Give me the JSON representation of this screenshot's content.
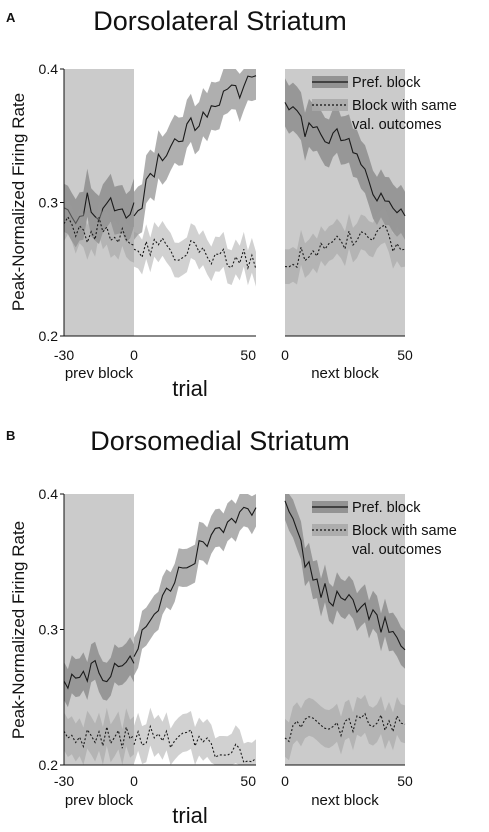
{
  "chart_data": [
    {
      "type": "line",
      "panel": "A",
      "title": "Dorsolateral Striatum",
      "ylabel": "Peak-Normalized Firing Rate",
      "xlabel": "trial",
      "ylim": [
        0.2,
        0.4
      ],
      "yticks": [
        "0.2",
        "0.3",
        "0.4"
      ],
      "segments": [
        {
          "label": "prev block",
          "x": [
            -30,
            -25,
            -20,
            -15,
            -10,
            -5,
            0
          ],
          "xlim": [
            -30,
            0
          ],
          "xticks": [
            "-30",
            "0"
          ],
          "shaded": true
        },
        {
          "label": "",
          "x": [
            0,
            5,
            10,
            15,
            20,
            25,
            30,
            35,
            40,
            45,
            50
          ],
          "xlim": [
            0,
            50
          ],
          "xticks": [
            "50"
          ],
          "shaded": false
        },
        {
          "label": "next block",
          "x": [
            0,
            5,
            10,
            15,
            20,
            25,
            30,
            35,
            40,
            45,
            50
          ],
          "xlim": [
            0,
            50
          ],
          "xticks": [
            "0",
            "50"
          ],
          "shaded": true
        }
      ],
      "series": [
        {
          "name": "Pref. block",
          "style": "solid",
          "band": 0.018,
          "values": [
            [
              0.296,
              0.292,
              0.3,
              0.29,
              0.296,
              0.292,
              0.3
            ],
            [
              0.29,
              0.31,
              0.33,
              0.338,
              0.35,
              0.36,
              0.37,
              0.38,
              0.382,
              0.385,
              0.395
            ],
            [
              0.375,
              0.365,
              0.352,
              0.348,
              0.35,
              0.342,
              0.34,
              0.32,
              0.3,
              0.293,
              0.29
            ]
          ]
        },
        {
          "name": "Block with same val. outcomes",
          "style": "dotted",
          "band": 0.013,
          "values": [
            [
              0.284,
              0.28,
              0.276,
              0.282,
              0.27,
              0.275,
              0.268
            ],
            [
              0.265,
              0.268,
              0.27,
              0.265,
              0.262,
              0.268,
              0.262,
              0.258,
              0.255,
              0.258,
              0.25
            ],
            [
              0.252,
              0.258,
              0.262,
              0.265,
              0.268,
              0.27,
              0.272,
              0.275,
              0.278,
              0.27,
              0.265
            ]
          ]
        }
      ],
      "legend": {
        "position": "top-right",
        "entries": [
          {
            "label": "Pref. block",
            "style": "solid"
          },
          {
            "label": "Block with same",
            "label2": "val. outcomes",
            "style": "dotted"
          }
        ]
      }
    },
    {
      "type": "line",
      "panel": "B",
      "title": "Dorsomedial Striatum",
      "ylabel": "Peak-Normalized Firing Rate",
      "xlabel": "trial",
      "ylim": [
        0.2,
        0.4
      ],
      "yticks": [
        "0.2",
        "0.3",
        "0.4"
      ],
      "segments": [
        {
          "label": "prev block",
          "x": [
            -30,
            -25,
            -20,
            -15,
            -10,
            -5,
            0
          ],
          "xlim": [
            -30,
            0
          ],
          "xticks": [
            "-30",
            "0"
          ],
          "shaded": true
        },
        {
          "label": "",
          "x": [
            0,
            5,
            10,
            15,
            20,
            25,
            30,
            35,
            40,
            45,
            50
          ],
          "xlim": [
            0,
            50
          ],
          "xticks": [
            "50"
          ],
          "shaded": false
        },
        {
          "label": "next block",
          "x": [
            0,
            5,
            10,
            15,
            20,
            25,
            30,
            35,
            40,
            45,
            50
          ],
          "xlim": [
            0,
            50
          ],
          "xticks": [
            "0",
            "50"
          ],
          "shaded": true
        }
      ],
      "series": [
        {
          "name": "Pref. block",
          "style": "solid",
          "band": 0.014,
          "values": [
            [
              0.262,
              0.265,
              0.268,
              0.27,
              0.268,
              0.272,
              0.275
            ],
            [
              0.28,
              0.3,
              0.32,
              0.33,
              0.345,
              0.355,
              0.365,
              0.372,
              0.38,
              0.385,
              0.39
            ],
            [
              0.395,
              0.37,
              0.345,
              0.33,
              0.325,
              0.32,
              0.315,
              0.31,
              0.305,
              0.298,
              0.285
            ]
          ]
        },
        {
          "name": "Block with same val. outcomes",
          "style": "dotted",
          "band": 0.014,
          "values": [
            [
              0.225,
              0.22,
              0.222,
              0.218,
              0.223,
              0.22,
              0.222
            ],
            [
              0.215,
              0.22,
              0.225,
              0.218,
              0.222,
              0.22,
              0.215,
              0.212,
              0.21,
              0.208,
              0.205
            ],
            [
              0.22,
              0.225,
              0.228,
              0.23,
              0.232,
              0.228,
              0.232,
              0.23,
              0.235,
              0.228,
              0.23
            ]
          ]
        }
      ],
      "legend": {
        "position": "top-right",
        "entries": [
          {
            "label": "Pref. block",
            "style": "solid"
          },
          {
            "label": "Block with same",
            "label2": "val. outcomes",
            "style": "dotted"
          }
        ]
      }
    }
  ]
}
